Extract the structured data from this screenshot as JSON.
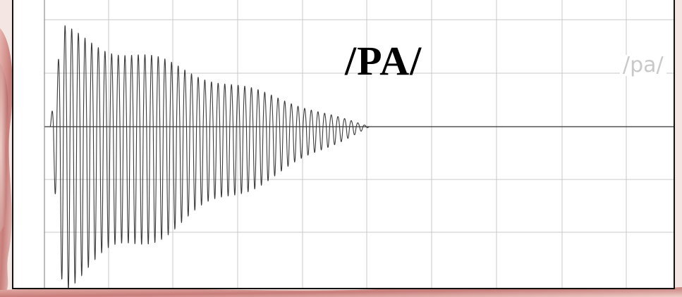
{
  "chart_data": {
    "type": "line",
    "title": "/PA/",
    "secondary_label": "/pa/",
    "xlabel": "",
    "ylabel": "",
    "grid": true,
    "legend": "none",
    "series": [
      {
        "kind": "waveform",
        "burst_start": 0.0,
        "burst_end": 0.5,
        "positive_envelope": {
          "peak": 0.93,
          "decay": "linear-to-zero"
        },
        "negative_envelope": {
          "peak": 1.0,
          "decay": "linear-to-zero"
        },
        "cycles": 48
      }
    ],
    "xlim": [
      0,
      1
    ],
    "ylim": [
      -1,
      1
    ],
    "colors": {
      "waveform": "#3a3a3a",
      "grid": "#c8c8c8",
      "baseline": "#333333",
      "frame": "#111111",
      "background": "#ffffff"
    }
  }
}
